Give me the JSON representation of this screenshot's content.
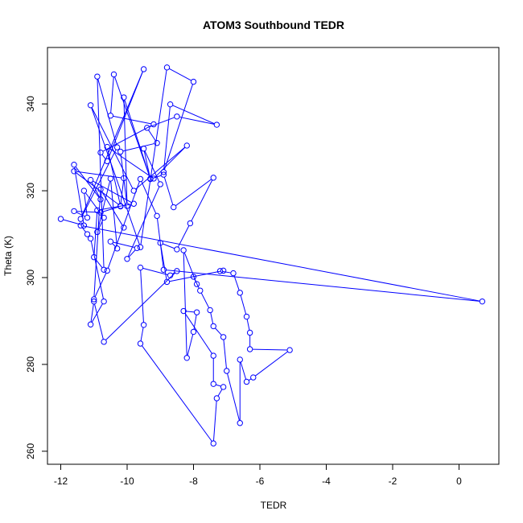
{
  "chart_data": {
    "type": "scatter",
    "title": "ATOM3 Southbound TEDR",
    "xlabel": "TEDR",
    "ylabel": "Theta (K)",
    "xlim": [
      -12.4,
      1.2
    ],
    "ylim": [
      257,
      353
    ],
    "xticks": [
      -12,
      -10,
      -8,
      -6,
      -4,
      -2,
      0
    ],
    "yticks": [
      260,
      280,
      300,
      320,
      340
    ],
    "grid": false,
    "legend": "none",
    "color": "#0000ff",
    "series": [
      {
        "points": [
          [
            -12.0,
            313.5
          ],
          [
            -11.3,
            312.0
          ],
          [
            -11.6,
            326.0
          ],
          [
            -10.8,
            318.0
          ],
          [
            -11.1,
            322.5
          ],
          [
            -9.8,
            317.0
          ],
          [
            -10.9,
            315.5
          ],
          [
            -11.0,
            304.7
          ],
          [
            -10.7,
            301.8
          ],
          [
            -10.9,
            346.3
          ],
          [
            -10.3,
            330.0
          ],
          [
            -11.4,
            313.5
          ],
          [
            -9.5,
            348.0
          ],
          [
            -10.6,
            326.8
          ],
          [
            -10.8,
            328.8
          ],
          [
            -9.2,
            335.3
          ],
          [
            -10.5,
            337.3
          ],
          [
            -10.4,
            346.8
          ],
          [
            -9.3,
            322.8
          ],
          [
            -10.1,
            341.5
          ],
          [
            -10.0,
            316.5
          ],
          [
            -10.2,
            329.0
          ],
          [
            -9.1,
            331.0
          ],
          [
            -9.4,
            334.5
          ],
          [
            -8.5,
            337.1
          ],
          [
            -7.3,
            335.2
          ],
          [
            -8.7,
            339.9
          ],
          [
            -8.9,
            324.3
          ],
          [
            -8.0,
            345.1
          ],
          [
            -8.8,
            348.4
          ],
          [
            -9.6,
            307.0
          ],
          [
            -11.1,
            339.7
          ],
          [
            -9.8,
            320.0
          ],
          [
            -8.2,
            330.4
          ],
          [
            -9.2,
            322.8
          ],
          [
            -10.6,
            330.1
          ],
          [
            -10.2,
            316.5
          ],
          [
            -11.6,
            324.5
          ],
          [
            -10.1,
            322.9
          ],
          [
            -10.2,
            316.4
          ],
          [
            -10.8,
            315.0
          ],
          [
            -11.6,
            315.3
          ],
          [
            -11.2,
            313.8
          ],
          [
            -11.3,
            320.0
          ],
          [
            -10.7,
            313.8
          ],
          [
            -10.9,
            310.5
          ],
          [
            -10.5,
            322.8
          ],
          [
            -10.3,
            306.7
          ],
          [
            -10.5,
            308.3
          ],
          [
            -9.7,
            306.8
          ],
          [
            -10.0,
            304.3
          ],
          [
            -9.0,
            321.5
          ],
          [
            -9.5,
            329.7
          ],
          [
            -9.3,
            322.7
          ],
          [
            -8.9,
            323.7
          ],
          [
            -8.6,
            316.2
          ],
          [
            -7.4,
            323.0
          ],
          [
            -8.1,
            312.5
          ],
          [
            -8.5,
            306.5
          ],
          [
            -9.0,
            308.0
          ],
          [
            -8.8,
            299.0
          ],
          [
            -7.1,
            301.6
          ],
          [
            -7.2,
            301.5
          ],
          [
            -6.8,
            301.0
          ],
          [
            -6.6,
            296.5
          ],
          [
            -6.4,
            291.0
          ],
          [
            -6.3,
            287.3
          ],
          [
            -6.3,
            283.5
          ],
          [
            -5.1,
            283.3
          ],
          [
            -6.2,
            277.0
          ],
          [
            -6.4,
            276.0
          ],
          [
            -6.6,
            281.1
          ],
          [
            -6.6,
            266.5
          ],
          [
            -7.0,
            278.5
          ],
          [
            -7.1,
            286.3
          ],
          [
            -7.4,
            288.8
          ],
          [
            -7.5,
            292.5
          ],
          [
            -7.8,
            297.0
          ],
          [
            -8.0,
            300.2
          ],
          [
            -7.9,
            298.5
          ],
          [
            -8.3,
            306.3
          ],
          [
            -8.2,
            281.5
          ],
          [
            -8.0,
            287.5
          ],
          [
            -7.9,
            292.0
          ],
          [
            -8.3,
            292.3
          ],
          [
            -7.4,
            282.0
          ],
          [
            -7.4,
            275.5
          ],
          [
            -7.1,
            274.8
          ],
          [
            -7.3,
            272.2
          ],
          [
            -7.4,
            261.8
          ],
          [
            -9.6,
            284.8
          ],
          [
            -9.5,
            289.1
          ],
          [
            -9.6,
            302.3
          ],
          [
            -8.7,
            300.5
          ],
          [
            -8.5,
            301.5
          ],
          [
            -10.7,
            285.2
          ],
          [
            -11.0,
            294.5
          ],
          [
            -11.1,
            289.2
          ],
          [
            -10.7,
            294.5
          ],
          [
            -11.1,
            309.0
          ],
          [
            -11.2,
            310.0
          ],
          [
            -11.4,
            312.0
          ],
          [
            0.7,
            294.5
          ],
          [
            -8.9,
            301.8
          ],
          [
            -9.1,
            314.2
          ],
          [
            -9.6,
            322.7
          ],
          [
            -10.6,
            301.6
          ],
          [
            -11.0,
            295.0
          ],
          [
            -10.8,
            320.3
          ],
          [
            -10.1,
            311.5
          ]
        ]
      }
    ]
  }
}
